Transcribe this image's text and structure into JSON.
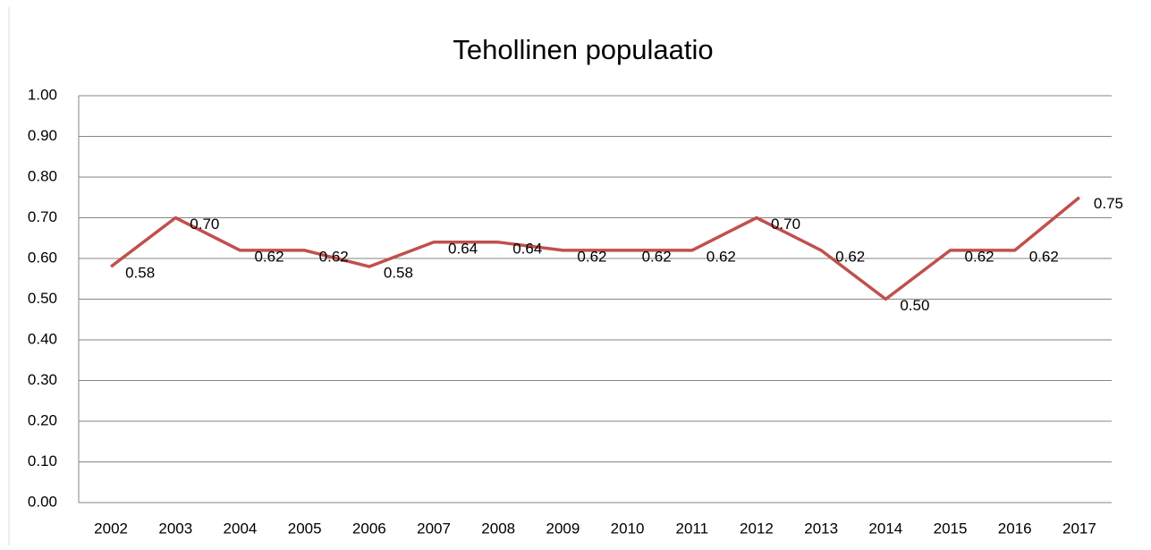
{
  "chart_data": {
    "type": "line",
    "title": "Tehollinen populaatio",
    "categories": [
      "2002",
      "2003",
      "2004",
      "2005",
      "2006",
      "2007",
      "2008",
      "2009",
      "2010",
      "2011",
      "2012",
      "2013",
      "2014",
      "2015",
      "2016",
      "2017"
    ],
    "series": [
      {
        "name": "Tehollinen populaatio",
        "color": "#c0504d",
        "values": [
          0.58,
          0.7,
          0.62,
          0.62,
          0.58,
          0.64,
          0.64,
          0.62,
          0.62,
          0.62,
          0.7,
          0.62,
          0.5,
          0.62,
          0.62,
          0.75
        ],
        "value_labels": [
          "0.58",
          "0.70",
          "0.62",
          "0.62",
          "0.58",
          "0.64",
          "0.64",
          "0.62",
          "0.62",
          "0.62",
          "0.70",
          "0.62",
          "0.50",
          "0.62",
          "0.62",
          "0.75"
        ]
      }
    ],
    "ylim": [
      0,
      1
    ],
    "yticks": [
      {
        "value": 0,
        "label": "0.00"
      },
      {
        "value": 0.1,
        "label": "0.10"
      },
      {
        "value": 0.2,
        "label": "0.20"
      },
      {
        "value": 0.3,
        "label": "0.30"
      },
      {
        "value": 0.4,
        "label": "0.40"
      },
      {
        "value": 0.5,
        "label": "0.50"
      },
      {
        "value": 0.6,
        "label": "0.60"
      },
      {
        "value": 0.7,
        "label": "0.70"
      },
      {
        "value": 0.8,
        "label": "0.80"
      },
      {
        "value": 0.9,
        "label": "0.90"
      },
      {
        "value": 1,
        "label": "1.00"
      }
    ],
    "grid": true
  }
}
